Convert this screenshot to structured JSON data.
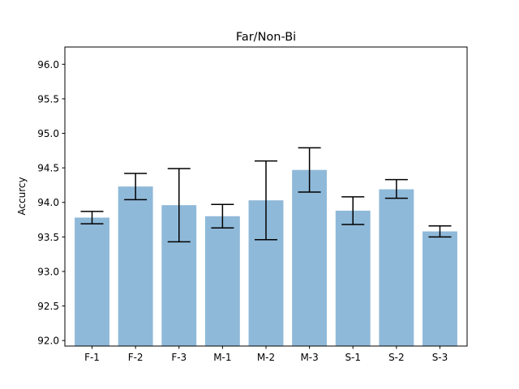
{
  "chart_data": {
    "type": "bar",
    "title": "Far/Non-Bi",
    "xlabel": "",
    "ylabel": "Accurcy",
    "categories": [
      "F-1",
      "F-2",
      "F-3",
      "M-1",
      "M-2",
      "M-3",
      "S-1",
      "S-2",
      "S-3"
    ],
    "values": [
      93.78,
      94.23,
      93.96,
      93.8,
      94.03,
      94.47,
      93.88,
      94.19,
      93.58
    ],
    "error_low": [
      93.69,
      94.04,
      93.43,
      93.63,
      93.46,
      94.15,
      93.68,
      94.06,
      93.5
    ],
    "error_high": [
      93.87,
      94.42,
      94.49,
      93.97,
      94.6,
      94.79,
      94.08,
      94.33,
      93.66
    ],
    "ylim": [
      91.92,
      96.25
    ],
    "yticks": [
      92.0,
      92.5,
      93.0,
      93.5,
      94.0,
      94.5,
      95.0,
      95.5,
      96.0
    ],
    "ytick_labels": [
      "92.0",
      "92.5",
      "93.0",
      "93.5",
      "94.0",
      "94.5",
      "95.0",
      "95.5",
      "96.0"
    ],
    "grid": false,
    "colors": {
      "bar": "#8fb9d9",
      "error": "#000000",
      "axis": "#000000"
    }
  }
}
